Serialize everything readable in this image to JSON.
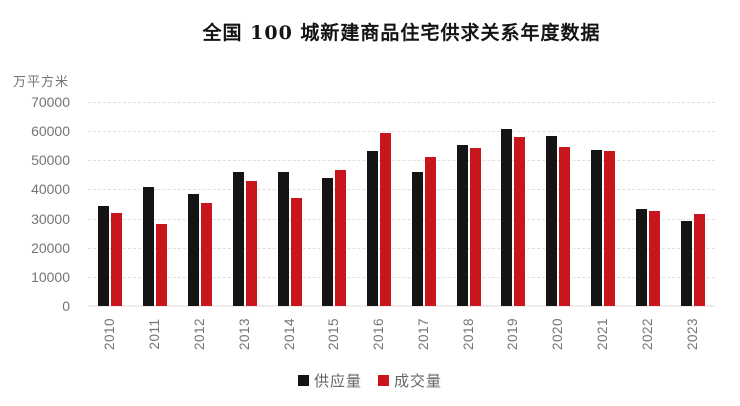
{
  "chart": {
    "title": "全国 100 城新建商品住宅供求关系年度数据",
    "unit_label": "万平方米"
  },
  "colors": {
    "supply_bar": "#141414",
    "transaction_bar": "#c8161c",
    "gridline": "#e0e0e0",
    "axis_text": "#757575",
    "legend_text": "#666666",
    "title_text": "#141414",
    "background": "#ffffff"
  },
  "chart_data": {
    "type": "bar",
    "title": "全国 100 城新建商品住宅供求关系年度数据",
    "xlabel": "",
    "ylabel": "万平方米",
    "ylim": [
      0,
      70000
    ],
    "yticks": [
      0,
      10000,
      20000,
      30000,
      40000,
      50000,
      60000,
      70000
    ],
    "grid": "horizontal-dashed",
    "legend_position": "bottom",
    "categories": [
      "2010",
      "2011",
      "2012",
      "2013",
      "2014",
      "2015",
      "2016",
      "2017",
      "2018",
      "2019",
      "2020",
      "2021",
      "2022",
      "2023"
    ],
    "series": [
      {
        "name": "供应量",
        "color": "#141414",
        "values": [
          34300,
          41000,
          38500,
          46100,
          46100,
          43800,
          53300,
          45900,
          55300,
          60600,
          58200,
          53700,
          33200,
          29000
        ]
      },
      {
        "name": "成交量",
        "color": "#c8161c",
        "values": [
          32000,
          28100,
          35400,
          43000,
          37200,
          46500,
          59400,
          51100,
          54300,
          58100,
          54400,
          53200,
          32700,
          31600
        ]
      }
    ]
  }
}
